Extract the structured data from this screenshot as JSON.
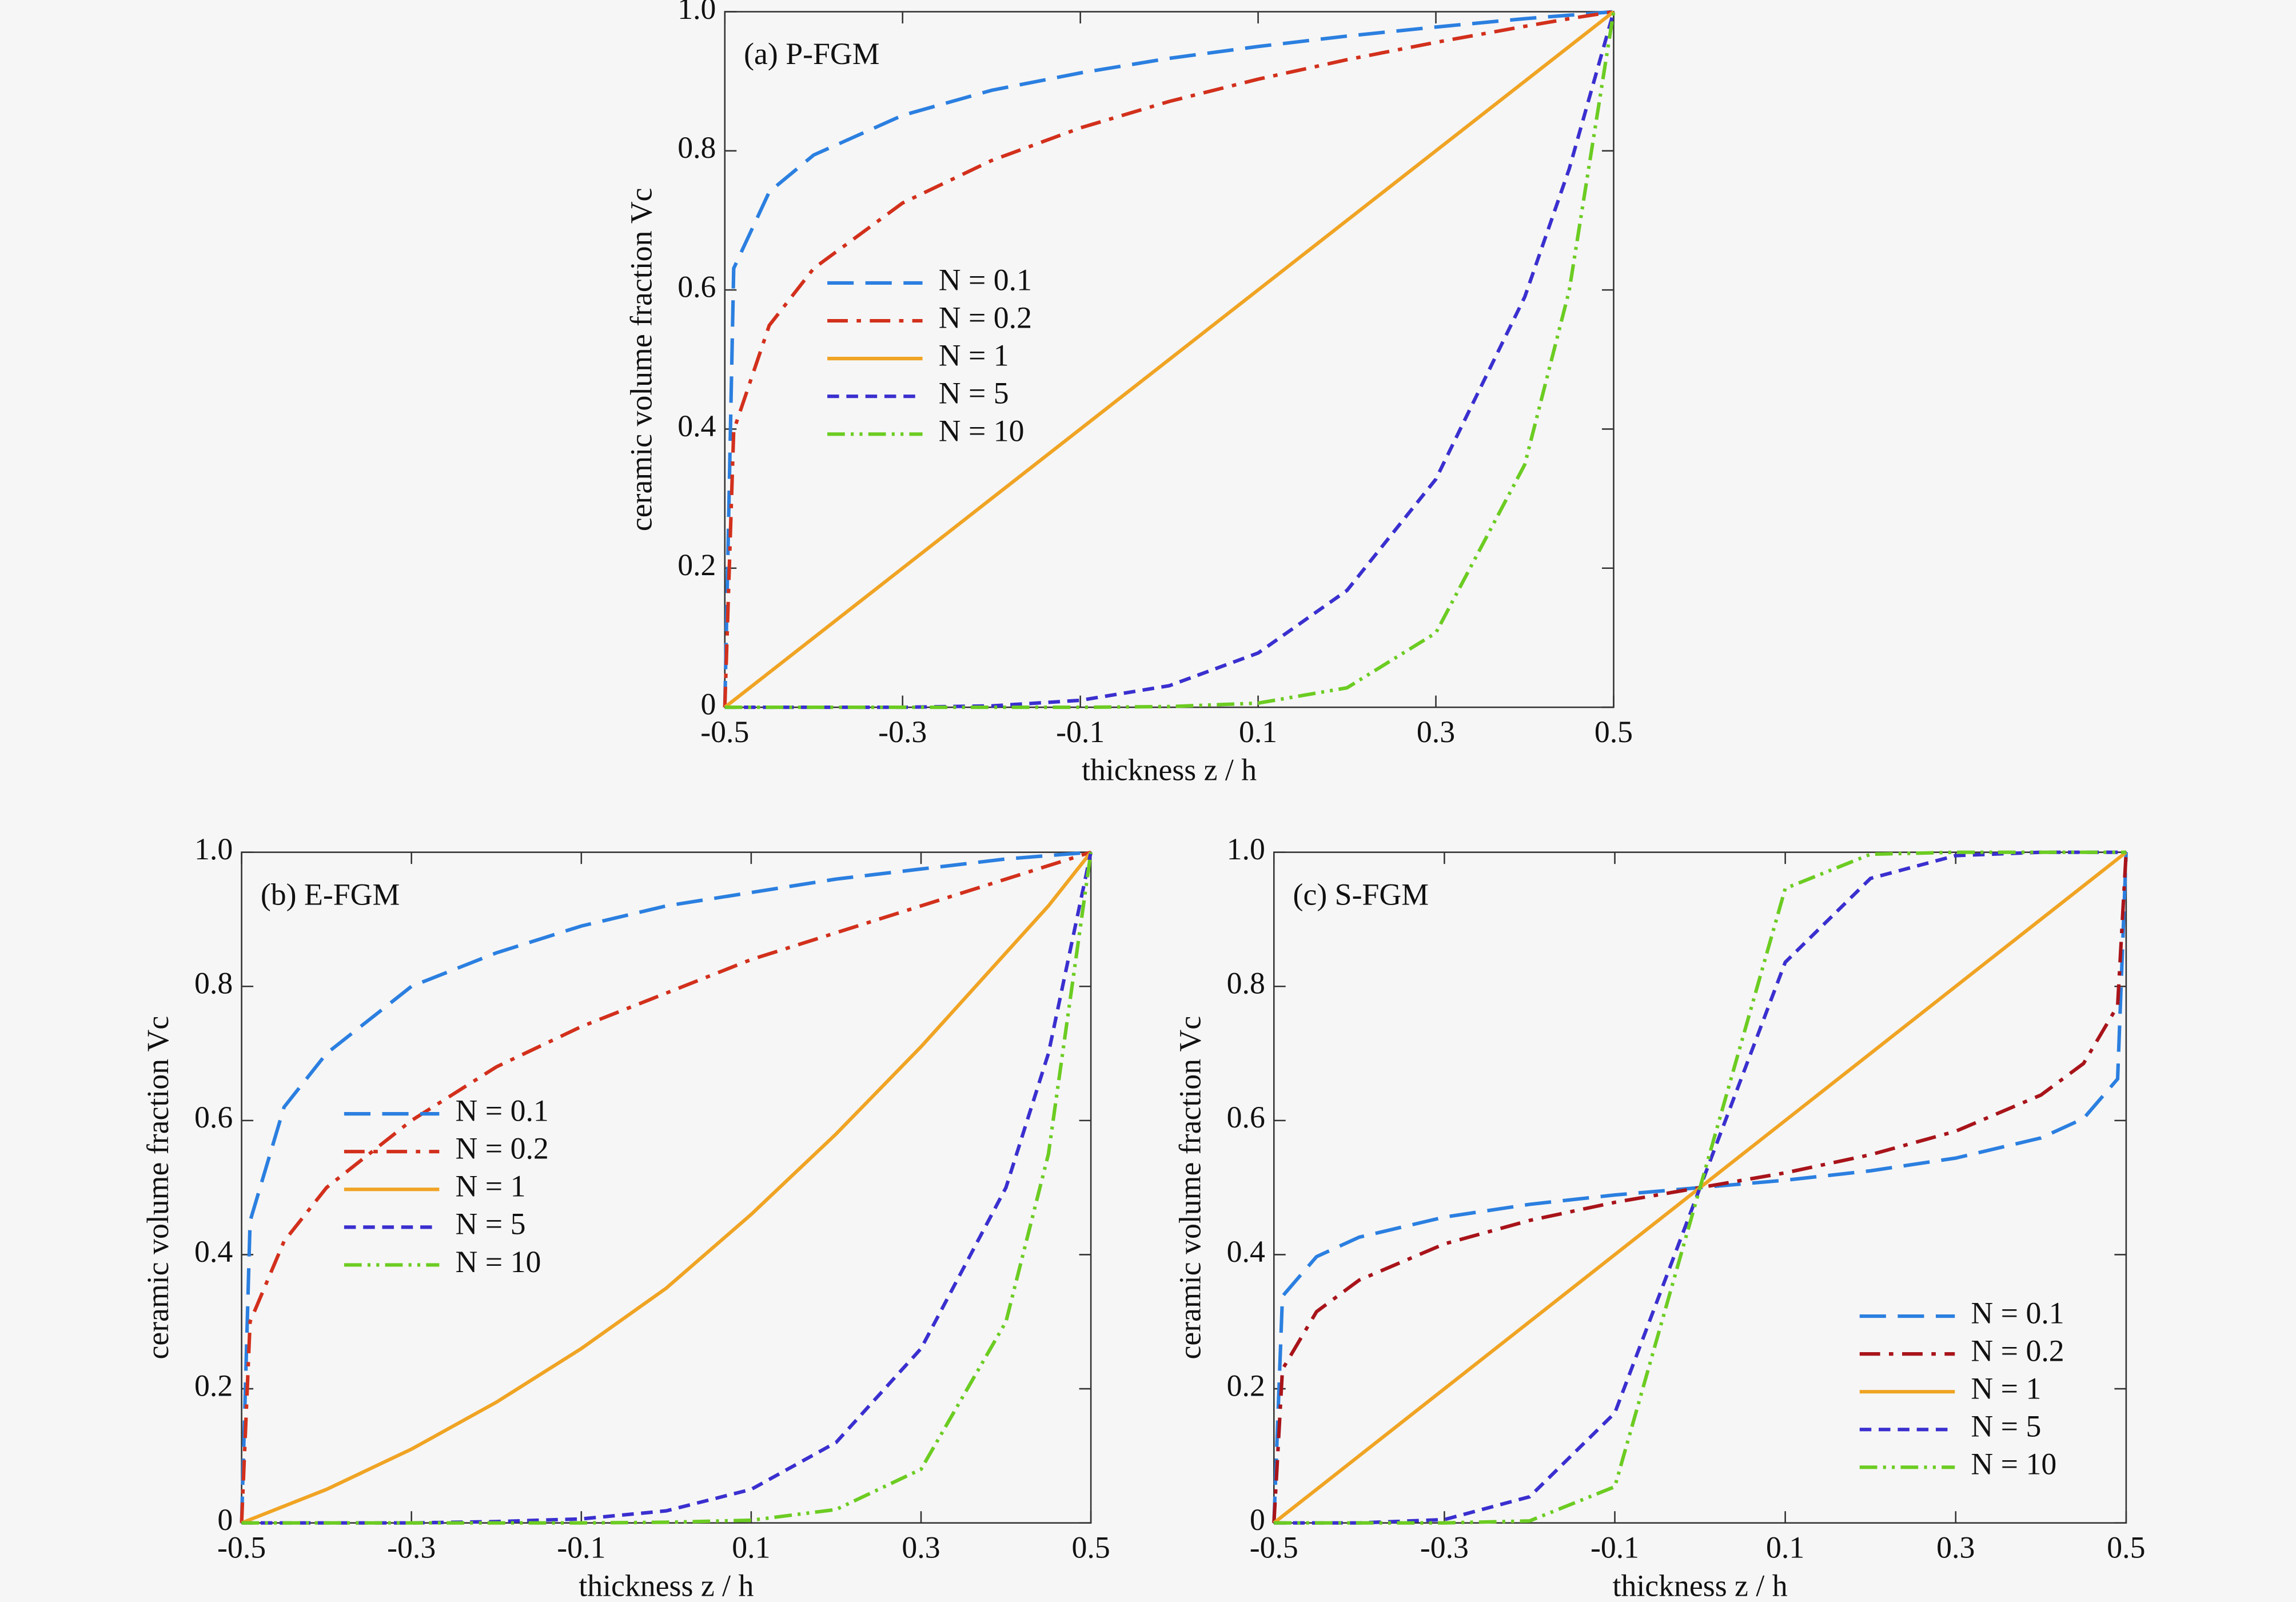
{
  "chart_data": [
    {
      "type": "line",
      "title": "(a) P-FGM",
      "xlabel": "thickness z / h",
      "ylabel": "ceramic volume fraction Vc",
      "x": [
        -0.5,
        -0.49,
        -0.45,
        -0.4,
        -0.3,
        -0.2,
        -0.1,
        0,
        0.1,
        0.2,
        0.3,
        0.4,
        0.45,
        0.5
      ],
      "series": [
        {
          "name": "N = 0.1",
          "color": "#2b7fe0",
          "values": [
            0,
            0.631,
            0.741,
            0.794,
            0.851,
            0.887,
            0.912,
            0.933,
            0.95,
            0.965,
            0.978,
            0.99,
            0.995,
            1
          ]
        },
        {
          "name": "N = 0.2",
          "color": "#d2301c",
          "values": [
            0,
            0.398,
            0.549,
            0.631,
            0.725,
            0.786,
            0.833,
            0.871,
            0.903,
            0.931,
            0.956,
            0.979,
            0.99,
            1
          ]
        },
        {
          "name": "N = 1",
          "color": "#f0a424",
          "values": [
            0,
            0.01,
            0.05,
            0.1,
            0.2,
            0.3,
            0.4,
            0.5,
            0.6,
            0.7,
            0.8,
            0.9,
            0.95,
            1
          ]
        },
        {
          "name": "N = 5",
          "color": "#3a2fcf",
          "values": [
            0,
            0,
            0,
            0,
            0,
            0.002,
            0.01,
            0.031,
            0.078,
            0.168,
            0.328,
            0.59,
            0.774,
            1
          ]
        },
        {
          "name": "N = 10",
          "color": "#6ccc22",
          "values": [
            0,
            0,
            0,
            0,
            0,
            0,
            0,
            0.001,
            0.006,
            0.028,
            0.107,
            0.349,
            0.599,
            1
          ]
        }
      ],
      "xlim": [
        -0.5,
        0.5
      ],
      "ylim": [
        0,
        1
      ],
      "xticks": [
        -0.5,
        -0.3,
        -0.1,
        0.1,
        0.3,
        0.5
      ],
      "yticks": [
        0,
        0.2,
        0.4,
        0.6,
        0.8,
        {
          "value": 1,
          "label": "1.0"
        }
      ],
      "legend": "center left"
    },
    {
      "type": "line",
      "title": "(b) E-FGM",
      "xlabel": "thickness z / h",
      "ylabel": "ceramic volume fraction Vc",
      "x": [
        -0.5,
        -0.49,
        -0.45,
        -0.4,
        -0.3,
        -0.2,
        -0.1,
        0,
        0.1,
        0.2,
        0.3,
        0.4,
        0.45,
        0.5
      ],
      "series": [
        {
          "name": "N = 0.1",
          "color": "#2b7fe0",
          "values": [
            0,
            0.45,
            0.62,
            0.7,
            0.8,
            0.85,
            0.89,
            0.92,
            0.94,
            0.96,
            0.975,
            0.99,
            0.995,
            1
          ]
        },
        {
          "name": "N = 0.2",
          "color": "#d2301c",
          "values": [
            0,
            0.3,
            0.42,
            0.5,
            0.6,
            0.68,
            0.74,
            0.79,
            0.84,
            0.88,
            0.92,
            0.96,
            0.98,
            1
          ]
        },
        {
          "name": "N = 1",
          "color": "#f0a424",
          "values": [
            0,
            0.005,
            0.025,
            0.05,
            0.11,
            0.18,
            0.26,
            0.35,
            0.46,
            0.58,
            0.71,
            0.85,
            0.92,
            1
          ]
        },
        {
          "name": "N = 5",
          "color": "#3a2fcf",
          "values": [
            0,
            0,
            0,
            0,
            0,
            0.002,
            0.006,
            0.018,
            0.05,
            0.12,
            0.26,
            0.5,
            0.7,
            1
          ]
        },
        {
          "name": "N = 10",
          "color": "#6ccc22",
          "values": [
            0,
            0,
            0,
            0,
            0,
            0,
            0,
            0.001,
            0.004,
            0.02,
            0.08,
            0.3,
            0.55,
            1
          ]
        }
      ],
      "xlim": [
        -0.5,
        0.5
      ],
      "ylim": [
        0,
        1
      ],
      "xticks": [
        -0.5,
        -0.3,
        -0.1,
        0.1,
        0.3,
        0.5
      ],
      "yticks": [
        0,
        0.2,
        0.4,
        0.6,
        0.8,
        {
          "value": 1,
          "label": "1.0"
        }
      ],
      "legend": "center left"
    },
    {
      "type": "line",
      "title": "(c) S-FGM",
      "xlabel": "thickness z / h",
      "ylabel": "ceramic volume fraction Vc",
      "x": [
        -0.5,
        -0.49,
        -0.45,
        -0.4,
        -0.3,
        -0.2,
        -0.1,
        0,
        0.1,
        0.2,
        0.3,
        0.4,
        0.45,
        0.49,
        0.5
      ],
      "series": [
        {
          "name": "N = 0.1",
          "color": "#2b7fe0",
          "values": [
            0,
            0.338,
            0.397,
            0.426,
            0.456,
            0.475,
            0.489,
            0.5,
            0.511,
            0.525,
            0.544,
            0.574,
            0.603,
            0.662,
            1
          ]
        },
        {
          "name": "N = 0.2",
          "color": "#a8141a",
          "values": [
            0,
            0.229,
            0.315,
            0.362,
            0.416,
            0.451,
            0.478,
            0.5,
            0.522,
            0.549,
            0.584,
            0.638,
            0.685,
            0.771,
            1
          ]
        },
        {
          "name": "N = 1",
          "color": "#f0a424",
          "values": [
            0,
            0.01,
            0.05,
            0.1,
            0.2,
            0.3,
            0.4,
            0.5,
            0.6,
            0.7,
            0.8,
            0.9,
            0.95,
            0.99,
            1
          ]
        },
        {
          "name": "N = 5",
          "color": "#3a2fcf",
          "values": [
            0,
            0,
            0,
            0,
            0.005,
            0.039,
            0.164,
            0.5,
            0.836,
            0.961,
            0.995,
            1,
            1,
            1,
            1
          ]
        },
        {
          "name": "N = 10",
          "color": "#6ccc22",
          "values": [
            0,
            0,
            0,
            0,
            0,
            0.003,
            0.054,
            0.5,
            0.946,
            0.997,
            1,
            1,
            1,
            1,
            1
          ]
        }
      ],
      "xlim": [
        -0.5,
        0.5
      ],
      "ylim": [
        0,
        1
      ],
      "xticks": [
        -0.5,
        -0.3,
        -0.1,
        0.1,
        0.3,
        0.5
      ],
      "yticks": [
        0,
        0.2,
        0.4,
        0.6,
        0.8,
        {
          "value": 1,
          "label": "1.0"
        }
      ],
      "legend": "lower right"
    }
  ]
}
